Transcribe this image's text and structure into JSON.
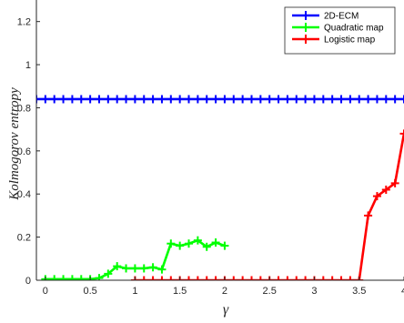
{
  "chart_data": {
    "type": "line",
    "title": "",
    "xlabel": "γ",
    "ylabel": "Kolmogorov entropy",
    "xlim": [
      -0.1,
      4
    ],
    "ylim": [
      0,
      1.3
    ],
    "xticks": [
      0,
      0.5,
      1,
      1.5,
      2,
      2.5,
      3,
      3.5,
      4
    ],
    "xtick_labels": [
      "0",
      "0.5",
      "1",
      "1.5",
      "2",
      "2.5",
      "3",
      "3.5",
      "4"
    ],
    "yticks": [
      0,
      0.2,
      0.4,
      0.6,
      0.8,
      1,
      1.2
    ],
    "ytick_labels": [
      "0",
      "0.2",
      "0.4",
      "0.6",
      "0.8",
      "1",
      "1.2"
    ],
    "grid": false,
    "legend_position": "top-right",
    "marker": "plus",
    "series": [
      {
        "name": "2D-ECM",
        "color": "#0000ff",
        "x": [
          -0.1,
          0,
          0.1,
          0.2,
          0.3,
          0.4,
          0.5,
          0.6,
          0.7,
          0.8,
          0.9,
          1.0,
          1.1,
          1.2,
          1.3,
          1.4,
          1.5,
          1.6,
          1.7,
          1.8,
          1.9,
          2.0,
          2.1,
          2.2,
          2.3,
          2.4,
          2.5,
          2.6,
          2.7,
          2.8,
          2.9,
          3.0,
          3.1,
          3.2,
          3.3,
          3.4,
          3.5,
          3.6,
          3.7,
          3.8,
          3.9,
          4.0
        ],
        "y": [
          0.84,
          0.84,
          0.84,
          0.84,
          0.84,
          0.84,
          0.84,
          0.84,
          0.84,
          0.84,
          0.84,
          0.84,
          0.84,
          0.84,
          0.84,
          0.84,
          0.84,
          0.84,
          0.84,
          0.84,
          0.84,
          0.84,
          0.84,
          0.84,
          0.84,
          0.84,
          0.84,
          0.84,
          0.84,
          0.84,
          0.84,
          0.84,
          0.84,
          0.84,
          0.84,
          0.84,
          0.84,
          0.84,
          0.84,
          0.84,
          0.84,
          0.84
        ]
      },
      {
        "name": "Quadratic map",
        "color": "#00ff00",
        "x": [
          0,
          0.1,
          0.2,
          0.3,
          0.4,
          0.5,
          0.6,
          0.7,
          0.8,
          0.9,
          1.0,
          1.1,
          1.2,
          1.3,
          1.4,
          1.5,
          1.6,
          1.7,
          1.8,
          1.9,
          2.0
        ],
        "y": [
          0.005,
          0.005,
          0.005,
          0.005,
          0.005,
          0.005,
          0.01,
          0.03,
          0.065,
          0.055,
          0.055,
          0.055,
          0.06,
          0.05,
          0.17,
          0.16,
          0.17,
          0.185,
          0.155,
          0.175,
          0.16
        ]
      },
      {
        "name": "Logistic map",
        "color": "#ff0000",
        "x": [
          1.0,
          1.1,
          1.2,
          1.3,
          1.4,
          1.5,
          1.6,
          1.7,
          1.8,
          1.9,
          2.0,
          2.1,
          2.2,
          2.3,
          2.4,
          2.5,
          2.6,
          2.7,
          2.8,
          2.9,
          3.0,
          3.1,
          3.2,
          3.3,
          3.4,
          3.5,
          3.6,
          3.7,
          3.8,
          3.9,
          4.0
        ],
        "y": [
          0,
          0,
          0,
          0,
          0,
          0,
          0,
          0,
          0,
          0,
          0,
          0,
          0,
          0,
          0,
          0,
          0,
          0,
          0,
          0,
          0,
          0,
          0,
          0,
          0,
          0,
          0.3,
          0.39,
          0.42,
          0.45,
          0.68
        ]
      }
    ]
  }
}
